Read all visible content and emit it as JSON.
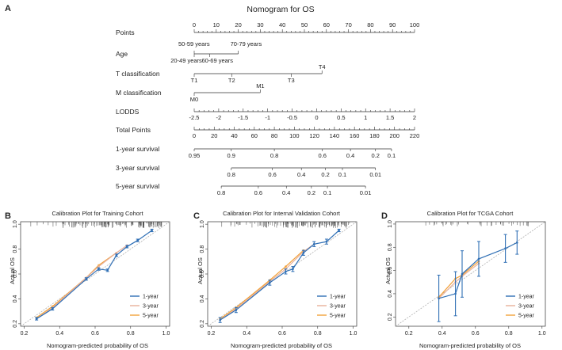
{
  "panel_labels": [
    "A",
    "B",
    "C",
    "D"
  ],
  "colors": {
    "one_year": "#2f6fb5",
    "three_year": "#e8b09a",
    "five_year": "#f2a23a",
    "ideal": "#b0b0b0",
    "axis": "#333333",
    "rug": "#444444"
  },
  "chart_data": [
    {
      "type": "nomogram",
      "title": "Nomogram for OS",
      "scales": [
        {
          "name": "Points",
          "min": 0,
          "max": 100,
          "ticks": [
            {
              "v": 0,
              "l": "0"
            },
            {
              "v": 10,
              "l": "10"
            },
            {
              "v": 20,
              "l": "20"
            },
            {
              "v": 30,
              "l": "30"
            },
            {
              "v": 40,
              "l": "40"
            },
            {
              "v": 50,
              "l": "50"
            },
            {
              "v": 60,
              "l": "60"
            },
            {
              "v": 70,
              "l": "70"
            },
            {
              "v": 80,
              "l": "80"
            },
            {
              "v": 90,
              "l": "90"
            },
            {
              "v": 100,
              "l": "100"
            }
          ]
        },
        {
          "name": "Age",
          "categories": [
            {
              "label": "50-59 years",
              "points": 0
            },
            {
              "label": "20-49 years",
              "points": 0
            },
            {
              "label": "60-69 years",
              "points": 7
            },
            {
              "label": "70-79 years",
              "points": 20
            }
          ]
        },
        {
          "name": "T classification",
          "categories": [
            {
              "label": "T1",
              "points": 0
            },
            {
              "label": "T2",
              "points": 17
            },
            {
              "label": "T3",
              "points": 44
            },
            {
              "label": "T4",
              "points": 58
            }
          ]
        },
        {
          "name": "M classification",
          "categories": [
            {
              "label": "M0",
              "points": 0
            },
            {
              "label": "M1",
              "points": 30
            }
          ]
        },
        {
          "name": "LODDS",
          "ticks": [
            {
              "v": -2.5,
              "l": "-2.5"
            },
            {
              "v": -2,
              "l": "-2"
            },
            {
              "v": -1.5,
              "l": "-1.5"
            },
            {
              "v": -1,
              "l": "-1"
            },
            {
              "v": -0.5,
              "l": "-0.5"
            },
            {
              "v": 0,
              "l": "0"
            },
            {
              "v": 0.5,
              "l": "0.5"
            },
            {
              "v": 1,
              "l": "1"
            },
            {
              "v": 1.5,
              "l": "1.5"
            },
            {
              "v": 2,
              "l": "2"
            }
          ],
          "range": [
            -2.5,
            2
          ]
        },
        {
          "name": "Total Points",
          "min": 0,
          "max": 220,
          "ticks": [
            {
              "v": 0,
              "l": "0"
            },
            {
              "v": 20,
              "l": "20"
            },
            {
              "v": 40,
              "l": "40"
            },
            {
              "v": 60,
              "l": "60"
            },
            {
              "v": 80,
              "l": "80"
            },
            {
              "v": 100,
              "l": "100"
            },
            {
              "v": 120,
              "l": "120"
            },
            {
              "v": 140,
              "l": "140"
            },
            {
              "v": 160,
              "l": "160"
            },
            {
              "v": 180,
              "l": "180"
            },
            {
              "v": 200,
              "l": "200"
            },
            {
              "v": 220,
              "l": "220"
            }
          ]
        },
        {
          "name": "1-year survival",
          "ticks": [
            {
              "l": "0.95",
              "total": 0
            },
            {
              "l": "0.9",
              "total": 37
            },
            {
              "l": "0.8",
              "total": 80
            },
            {
              "l": "0.6",
              "total": 128
            },
            {
              "l": "0.4",
              "total": 156
            },
            {
              "l": "0.2",
              "total": 181
            },
            {
              "l": "0.1",
              "total": 197
            }
          ]
        },
        {
          "name": "3-year survival",
          "ticks": [
            {
              "l": "0.8",
              "total": 37
            },
            {
              "l": "0.6",
              "total": 78
            },
            {
              "l": "0.4",
              "total": 107
            },
            {
              "l": "0.2",
              "total": 131
            },
            {
              "l": "0.1",
              "total": 148
            },
            {
              "l": "0.01",
              "total": 181
            }
          ]
        },
        {
          "name": "5-year survival",
          "ticks": [
            {
              "l": "0.8",
              "total": 27
            },
            {
              "l": "0.6",
              "total": 64
            },
            {
              "l": "0.4",
              "total": 92
            },
            {
              "l": "0.2",
              "total": 117
            },
            {
              "l": "0.1",
              "total": 133
            },
            {
              "l": "0.01",
              "total": 171
            }
          ]
        }
      ]
    },
    {
      "type": "calibration",
      "title": "Calibration Plot for Training Cohort",
      "xlabel": "Nomogram-predicted probability of OS",
      "ylabel": "Actual OS",
      "xlim": [
        0.18,
        1.02
      ],
      "ylim": [
        0.18,
        1.02
      ],
      "xticks": [
        "0.2",
        "0.4",
        "0.6",
        "0.8",
        "1.0"
      ],
      "yticks": [
        "0.2",
        "0.4",
        "0.6",
        "0.8",
        "1.0"
      ],
      "legend": [
        "1-year",
        "3-year",
        "5-year"
      ],
      "series": [
        {
          "name": "1-year",
          "points": [
            [
              0.27,
              0.24,
              0.01
            ],
            [
              0.36,
              0.32,
              0.01
            ],
            [
              0.55,
              0.56,
              0.01
            ],
            [
              0.62,
              0.64,
              0.01
            ],
            [
              0.67,
              0.63,
              0.01
            ],
            [
              0.72,
              0.75,
              0.01
            ],
            [
              0.78,
              0.82,
              0.01
            ],
            [
              0.84,
              0.87,
              0.01
            ],
            [
              0.92,
              0.95,
              0.01
            ]
          ]
        },
        {
          "name": "3-year",
          "points": [
            [
              0.27,
              0.24
            ],
            [
              0.36,
              0.33
            ],
            [
              0.55,
              0.57
            ],
            [
              0.62,
              0.66
            ],
            [
              0.72,
              0.77
            ],
            [
              0.78,
              0.83
            ]
          ]
        },
        {
          "name": "5-year",
          "points": [
            [
              0.27,
              0.25
            ],
            [
              0.36,
              0.34
            ],
            [
              0.55,
              0.57
            ],
            [
              0.62,
              0.67
            ],
            [
              0.72,
              0.77
            ]
          ]
        }
      ]
    },
    {
      "type": "calibration",
      "title": "Calibration Plot for Internal Validation Cohort",
      "xlabel": "Nomogram-predicted probability of OS",
      "ylabel": "Actual OS",
      "xlim": [
        0.18,
        1.02
      ],
      "ylim": [
        0.18,
        1.02
      ],
      "xticks": [
        "0.2",
        "0.4",
        "0.6",
        "0.8",
        "1.0"
      ],
      "yticks": [
        "0.2",
        "0.4",
        "0.6",
        "0.8",
        "1.0"
      ],
      "legend": [
        "1-year",
        "3-year",
        "5-year"
      ],
      "series": [
        {
          "name": "1-year",
          "points": [
            [
              0.25,
              0.23,
              0.02
            ],
            [
              0.34,
              0.31,
              0.02
            ],
            [
              0.53,
              0.53,
              0.02
            ],
            [
              0.62,
              0.62,
              0.02
            ],
            [
              0.66,
              0.64,
              0.02
            ],
            [
              0.72,
              0.77,
              0.02
            ],
            [
              0.78,
              0.84,
              0.02
            ],
            [
              0.85,
              0.86,
              0.02
            ],
            [
              0.92,
              0.95,
              0.01
            ]
          ]
        },
        {
          "name": "3-year",
          "points": [
            [
              0.25,
              0.23
            ],
            [
              0.34,
              0.32
            ],
            [
              0.53,
              0.54
            ],
            [
              0.62,
              0.64
            ],
            [
              0.72,
              0.78
            ],
            [
              0.78,
              0.84
            ]
          ]
        },
        {
          "name": "5-year",
          "points": [
            [
              0.25,
              0.24
            ],
            [
              0.34,
              0.33
            ],
            [
              0.53,
              0.55
            ],
            [
              0.62,
              0.66
            ],
            [
              0.72,
              0.79
            ]
          ]
        }
      ]
    },
    {
      "type": "calibration",
      "title": "Calibration Plot for TCGA Cohort",
      "xlabel": "Nomogram-predicted probability of OS",
      "ylabel": "Actual OS",
      "xlim": [
        0.12,
        1.02
      ],
      "ylim": [
        0.12,
        1.02
      ],
      "xticks": [
        "0.2",
        "0.4",
        "0.6",
        "0.8",
        "1.0"
      ],
      "yticks": [
        "0.2",
        "0.4",
        "0.6",
        "0.8",
        "1.0"
      ],
      "legend": [
        "1-year",
        "3-year",
        "5-year"
      ],
      "series": [
        {
          "name": "1-year",
          "points": [
            [
              0.38,
              0.36,
              0.2
            ],
            [
              0.48,
              0.4,
              0.19
            ],
            [
              0.52,
              0.57,
              0.2
            ],
            [
              0.62,
              0.7,
              0.15
            ],
            [
              0.78,
              0.79,
              0.12
            ],
            [
              0.85,
              0.84,
              0.1
            ]
          ]
        },
        {
          "name": "3-year",
          "points": [
            [
              0.38,
              0.36
            ],
            [
              0.48,
              0.5
            ],
            [
              0.52,
              0.55
            ],
            [
              0.62,
              0.66
            ]
          ]
        },
        {
          "name": "5-year",
          "points": [
            [
              0.38,
              0.37
            ],
            [
              0.48,
              0.53
            ],
            [
              0.52,
              0.56
            ],
            [
              0.62,
              0.68
            ]
          ]
        }
      ]
    }
  ]
}
